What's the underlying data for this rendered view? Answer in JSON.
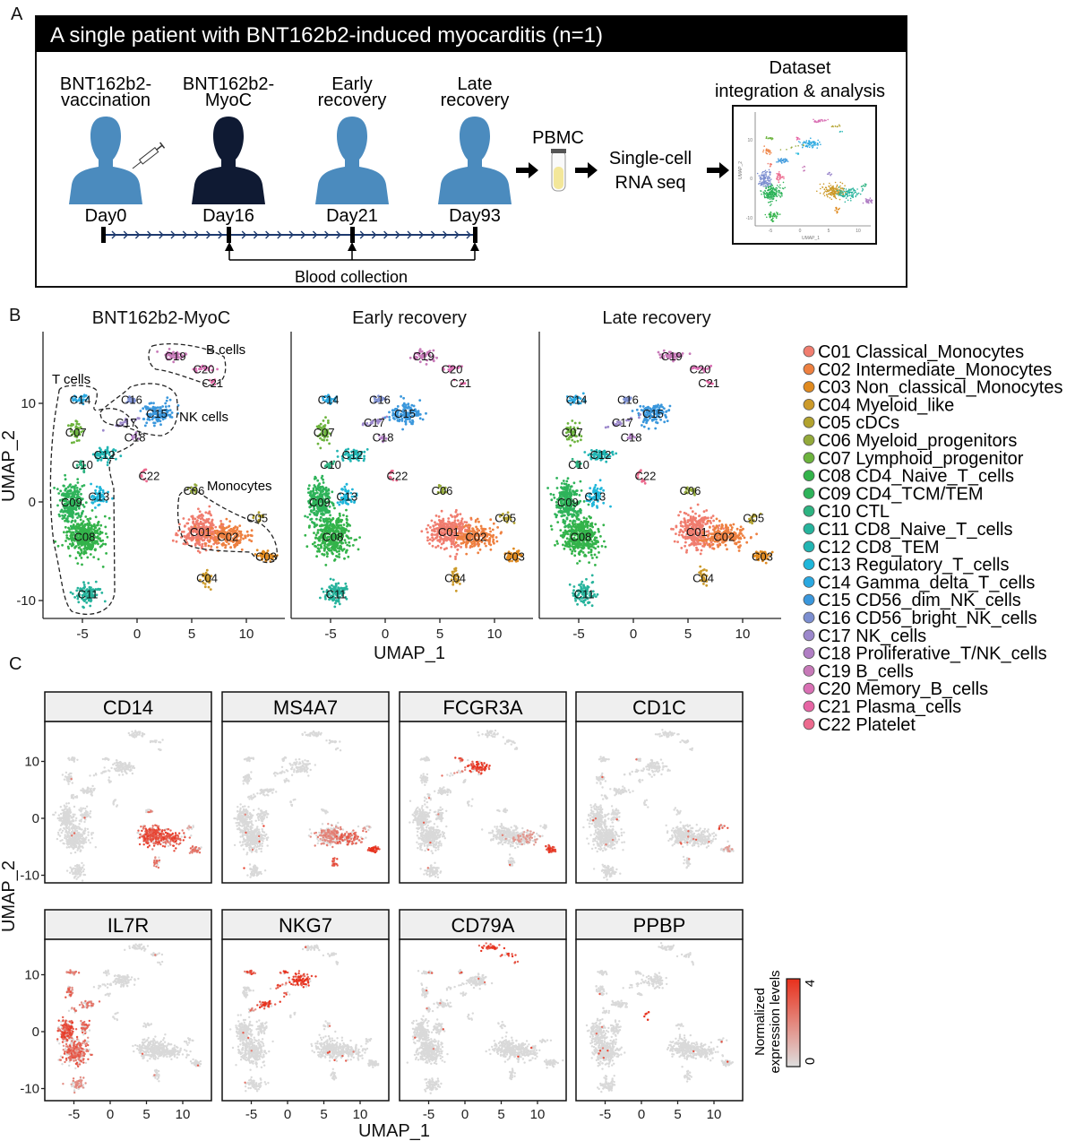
{
  "panel_letters": {
    "a": "A",
    "b": "B",
    "c": "C"
  },
  "panel_a": {
    "title": "A single patient with BNT162b2-induced myocarditis (n=1)",
    "timepoints": [
      {
        "line1": "BNT162b2-",
        "line2": "vaccination",
        "day": "Day0",
        "figure": "person-vaccinated",
        "color": "#4b8bbe"
      },
      {
        "line1": "BNT162b2-",
        "line2": "MyoC",
        "day": "Day16",
        "figure": "person-myocarditis",
        "color": "#0f1a33"
      },
      {
        "line1": "Early",
        "line2": "recovery",
        "day": "Day21",
        "figure": "person",
        "color": "#4b8bbe"
      },
      {
        "line1": "Late",
        "line2": "recovery",
        "day": "Day93",
        "figure": "person",
        "color": "#4b8bbe"
      }
    ],
    "blood_collection": "Blood collection",
    "pbmc": "PBMC",
    "scrna_line1": "Single-cell",
    "scrna_line2": "RNA seq",
    "dataset_line1": "Dataset",
    "dataset_line2": "integration & analysis",
    "inset": {
      "xlabel": "UMAP_1",
      "ylabel": "UMAP_2",
      "xticks": [
        "-5",
        "0",
        "5",
        "10"
      ],
      "yticks": [
        "10",
        "0",
        "-10"
      ]
    }
  },
  "chart_data": [
    {
      "type": "scatter",
      "panel": "B",
      "subplots": [
        "BNT162b2-MyoC",
        "Early recovery",
        "Late recovery"
      ],
      "xlabel": "UMAP_1",
      "ylabel": "UMAP_2",
      "xticks": [
        -5,
        0,
        5,
        10
      ],
      "yticks": [
        10,
        0,
        -10
      ],
      "xlim": [
        -8,
        13
      ],
      "ylim": [
        -12,
        17
      ],
      "groups": [
        "T cells",
        "NK cells",
        "B cells",
        "Monocytes"
      ],
      "clusters": [
        {
          "id": "C01",
          "name": "Classical_Monocytes",
          "color": "#f07d6f",
          "x": 5.8,
          "y": -3.0
        },
        {
          "id": "C02",
          "name": "Intermediate_Monocytes",
          "color": "#ee8040",
          "x": 8.3,
          "y": -3.5
        },
        {
          "id": "C03",
          "name": "Non_classical_Monocytes",
          "color": "#e08a1f",
          "x": 11.8,
          "y": -5.5
        },
        {
          "id": "C04",
          "name": "Myeloid_like",
          "color": "#cc9a2a",
          "x": 6.4,
          "y": -7.7
        },
        {
          "id": "C05",
          "name": "cDCs",
          "color": "#b2a22e",
          "x": 11.0,
          "y": -1.6
        },
        {
          "id": "C06",
          "name": "Myeloid_progenitors",
          "color": "#93a93a",
          "x": 5.2,
          "y": 1.2
        },
        {
          "id": "C07",
          "name": "Lymphoid_progenitor",
          "color": "#6cb33d",
          "x": -5.6,
          "y": 7.1
        },
        {
          "id": "C08",
          "name": "CD4_Naive_T_cells",
          "color": "#33b34a",
          "x": -4.8,
          "y": -3.5
        },
        {
          "id": "C09",
          "name": "CD4_TCM/TEM",
          "color": "#2eb35a",
          "x": -6.0,
          "y": 0.0
        },
        {
          "id": "C10",
          "name": "CTL",
          "color": "#2db381",
          "x": -5.0,
          "y": 3.8
        },
        {
          "id": "C11",
          "name": "CD8_Naive_T_cells",
          "color": "#26b39c",
          "x": -4.5,
          "y": -9.3
        },
        {
          "id": "C12",
          "name": "CD8_TEM",
          "color": "#22b5b3",
          "x": -3.0,
          "y": 4.8
        },
        {
          "id": "C13",
          "name": "Regulatory_T_cells",
          "color": "#1fb6da",
          "x": -3.5,
          "y": 0.6
        },
        {
          "id": "C14",
          "name": "Gamma_delta_T_cells",
          "color": "#2aa8e0",
          "x": -5.2,
          "y": 10.4
        },
        {
          "id": "C15",
          "name": "CD56_dim_NK_cells",
          "color": "#3a97dc",
          "x": 1.8,
          "y": 9.0
        },
        {
          "id": "C16",
          "name": "CD56_bright_NK_cells",
          "color": "#7c8ed0",
          "x": -0.5,
          "y": 10.4
        },
        {
          "id": "C17",
          "name": "NK_cells",
          "color": "#9c88cc",
          "x": -1.0,
          "y": 8.1
        },
        {
          "id": "C18",
          "name": "Proliferative_T/NK_cells",
          "color": "#b07ec4",
          "x": -0.2,
          "y": 6.6
        },
        {
          "id": "C19",
          "name": "B_cells",
          "color": "#c779b8",
          "x": 3.5,
          "y": 14.8
        },
        {
          "id": "C20",
          "name": "Memory_B_cells",
          "color": "#d970b4",
          "x": 6.1,
          "y": 13.5
        },
        {
          "id": "C21",
          "name": "Plasma_cells",
          "color": "#e665a4",
          "x": 6.9,
          "y": 12.1
        },
        {
          "id": "C22",
          "name": "Platelet",
          "color": "#ec6a8e",
          "x": 1.1,
          "y": 2.7
        }
      ],
      "legend_position": "right"
    },
    {
      "type": "scatter",
      "panel": "C",
      "xlabel": "UMAP_1",
      "ylabel": "UMAP_2",
      "xticks": [
        -5,
        0,
        5,
        10
      ],
      "yticks": [
        10,
        0,
        -10
      ],
      "colorbar": {
        "title_line1": "Normalized",
        "title_line2": "expression levels",
        "min": "0",
        "max": "4",
        "low_color": "#dedede",
        "high_color": "#e8301c"
      },
      "facets": [
        {
          "gene": "CD14",
          "expressed": {
            "C01": 3,
            "C02": 3,
            "C03": 2,
            "C04": 2,
            "C05": 1,
            "C06": 2
          }
        },
        {
          "gene": "MS4A7",
          "expressed": {
            "C01": 1.5,
            "C02": 2.5,
            "C03": 4,
            "C04": 3,
            "C05": 1
          }
        },
        {
          "gene": "FCGR3A",
          "expressed": {
            "C15": 3.5,
            "C16": 3,
            "C17": 2,
            "C03": 3.5,
            "C02": 1
          }
        },
        {
          "gene": "CD1C",
          "expressed": {
            "C05": 3,
            "C03": 1
          }
        },
        {
          "gene": "IL7R",
          "expressed": {
            "C08": 2.5,
            "C09": 3,
            "C10": 2,
            "C11": 1.5,
            "C12": 2,
            "C13": 2.5,
            "C07": 2.5,
            "C14": 2
          }
        },
        {
          "gene": "NKG7",
          "expressed": {
            "C15": 4,
            "C16": 4,
            "C17": 3.5,
            "C12": 3.5,
            "C14": 3,
            "C18": 3,
            "C10": 2
          }
        },
        {
          "gene": "CD79A",
          "expressed": {
            "C19": 4,
            "C20": 4,
            "C21": 3
          }
        },
        {
          "gene": "PPBP",
          "expressed": {
            "C22": 4
          }
        }
      ]
    }
  ]
}
